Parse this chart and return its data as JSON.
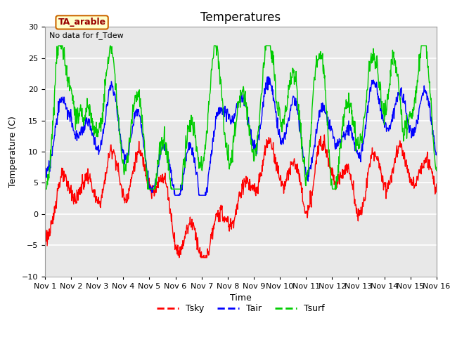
{
  "title": "Temperatures",
  "xlabel": "Time",
  "ylabel": "Temperature (C)",
  "ylim": [
    -10,
    30
  ],
  "yticks": [
    -10,
    -5,
    0,
    5,
    10,
    15,
    20,
    25,
    30
  ],
  "xlim": [
    0,
    15
  ],
  "xtick_labels": [
    "Nov 1",
    "Nov 2",
    "Nov 3",
    "Nov 4",
    "Nov 5",
    "Nov 6",
    "Nov 7",
    "Nov 8",
    "Nov 9",
    "Nov 10",
    "Nov 11",
    "Nov 12",
    "Nov 13",
    "Nov 14",
    "Nov 15",
    "Nov 16"
  ],
  "note_text": "No data for f_Tdew",
  "box_label": "TA_arable",
  "legend_entries": [
    "Tsky",
    "Tair",
    "Tsurf"
  ],
  "legend_colors": [
    "#ff0000",
    "#0000ff",
    "#00cc00"
  ],
  "tsky_color": "#ff0000",
  "tair_color": "#0000ff",
  "tsurf_color": "#00cc00",
  "background_color": "#e8e8e8",
  "linewidth": 1.0,
  "title_fontsize": 12,
  "axis_fontsize": 9,
  "tick_fontsize": 8
}
